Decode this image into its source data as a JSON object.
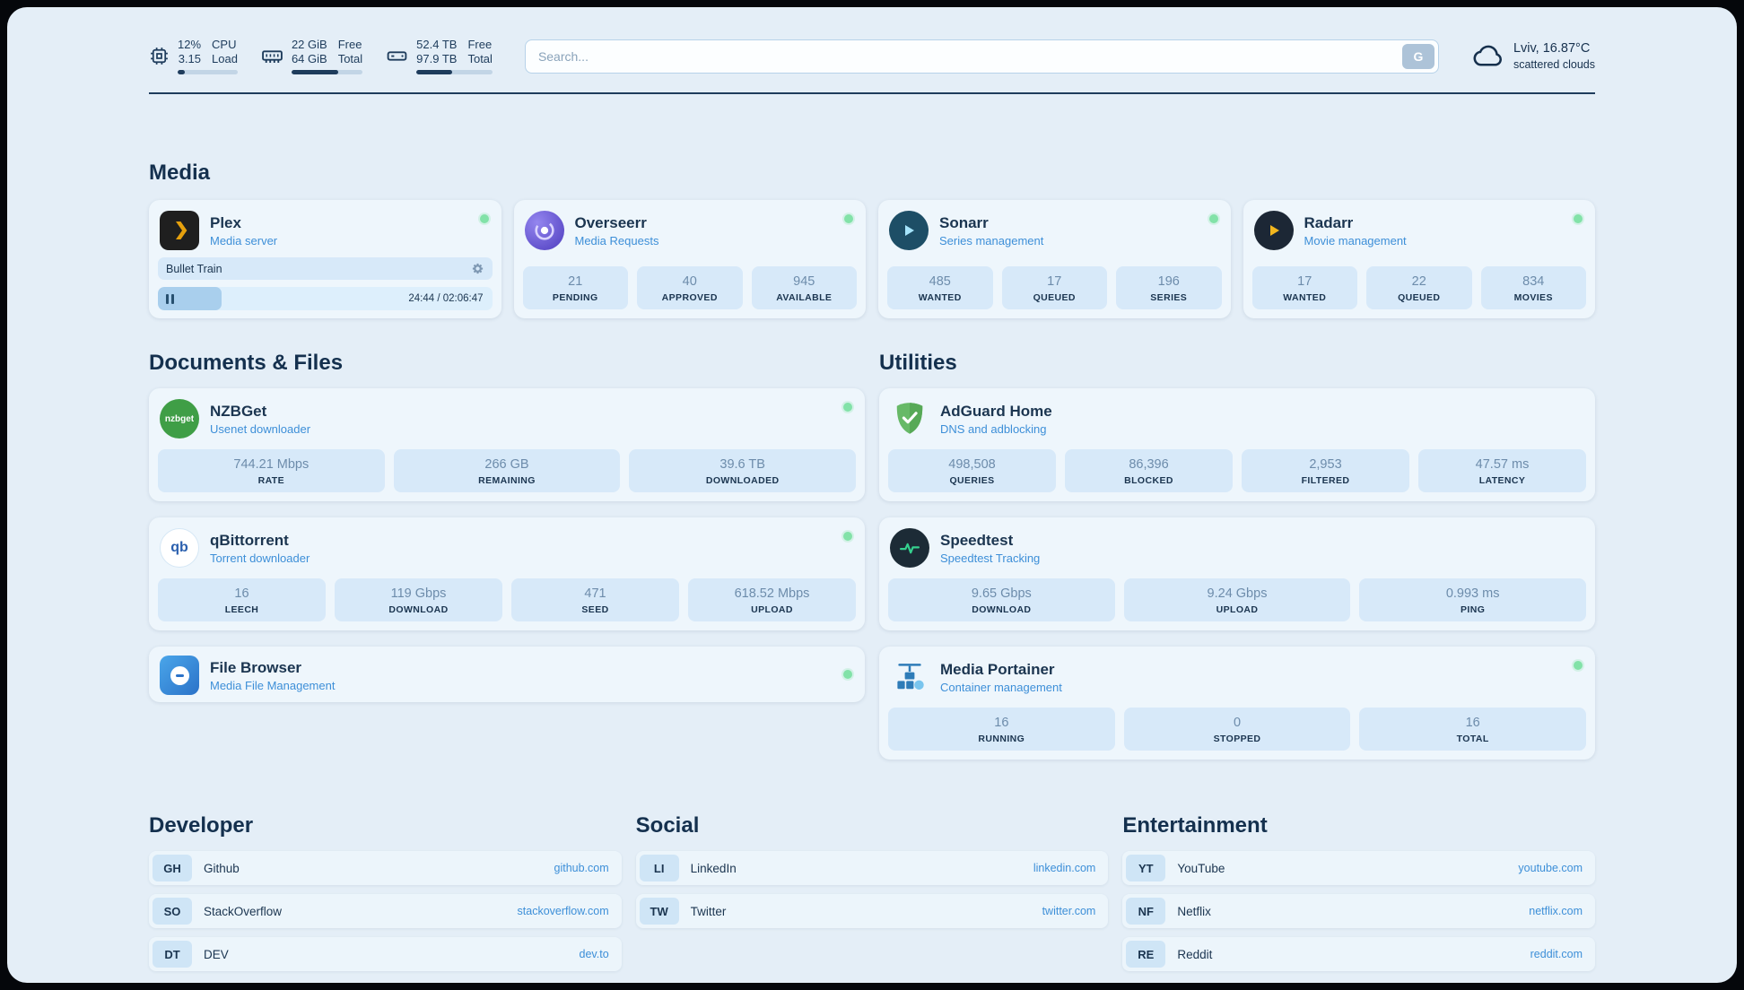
{
  "topbar": {
    "cpu": {
      "percent": "12%",
      "percent_label": "CPU",
      "load": "3.15",
      "load_label": "Load",
      "bar_pct": 12
    },
    "ram": {
      "free": "22 GiB",
      "free_label": "Free",
      "total": "64 GiB",
      "total_label": "Total",
      "bar_pct": 66
    },
    "disk": {
      "free": "52.4 TB",
      "free_label": "Free",
      "total": "97.9 TB",
      "total_label": "Total",
      "bar_pct": 47
    },
    "search": {
      "placeholder": "Search...",
      "provider_button": "G"
    },
    "weather": {
      "location": "Lviv, 16.87°C",
      "condition": "scattered clouds"
    }
  },
  "sections": {
    "media": "Media",
    "documents": "Documents & Files",
    "utilities": "Utilities"
  },
  "services": {
    "plex": {
      "name": "Plex",
      "subtitle": "Media server",
      "status": "online",
      "now_playing": {
        "title": "Bullet Train",
        "time": "24:44 / 02:06:47",
        "progress_pct": 19
      }
    },
    "overseerr": {
      "name": "Overseerr",
      "subtitle": "Media Requests",
      "status": "online",
      "stats": [
        {
          "value": "21",
          "label": "PENDING"
        },
        {
          "value": "40",
          "label": "APPROVED"
        },
        {
          "value": "945",
          "label": "AVAILABLE"
        }
      ]
    },
    "sonarr": {
      "name": "Sonarr",
      "subtitle": "Series management",
      "status": "online",
      "stats": [
        {
          "value": "485",
          "label": "WANTED"
        },
        {
          "value": "17",
          "label": "QUEUED"
        },
        {
          "value": "196",
          "label": "SERIES"
        }
      ]
    },
    "radarr": {
      "name": "Radarr",
      "subtitle": "Movie management",
      "status": "online",
      "stats": [
        {
          "value": "17",
          "label": "WANTED"
        },
        {
          "value": "22",
          "label": "QUEUED"
        },
        {
          "value": "834",
          "label": "MOVIES"
        }
      ]
    },
    "nzbget": {
      "name": "NZBGet",
      "subtitle": "Usenet downloader",
      "status": "online",
      "icon_text": "nzbget",
      "stats": [
        {
          "value": "744.21 Mbps",
          "label": "RATE"
        },
        {
          "value": "266 GB",
          "label": "REMAINING"
        },
        {
          "value": "39.6 TB",
          "label": "DOWNLOADED"
        }
      ]
    },
    "qbittorrent": {
      "name": "qBittorrent",
      "subtitle": "Torrent downloader",
      "status": "online",
      "icon_text": "qb",
      "stats": [
        {
          "value": "16",
          "label": "LEECH"
        },
        {
          "value": "119 Gbps",
          "label": "DOWNLOAD"
        },
        {
          "value": "471",
          "label": "SEED"
        },
        {
          "value": "618.52 Mbps",
          "label": "UPLOAD"
        }
      ]
    },
    "filebrowser": {
      "name": "File Browser",
      "subtitle": "Media File Management",
      "status": "online"
    },
    "adguard": {
      "name": "AdGuard Home",
      "subtitle": "DNS and adblocking",
      "stats": [
        {
          "value": "498,508",
          "label": "QUERIES"
        },
        {
          "value": "86,396",
          "label": "BLOCKED"
        },
        {
          "value": "2,953",
          "label": "FILTERED"
        },
        {
          "value": "47.57 ms",
          "label": "LATENCY"
        }
      ]
    },
    "speedtest": {
      "name": "Speedtest",
      "subtitle": "Speedtest Tracking",
      "stats": [
        {
          "value": "9.65 Gbps",
          "label": "DOWNLOAD"
        },
        {
          "value": "9.24 Gbps",
          "label": "UPLOAD"
        },
        {
          "value": "0.993 ms",
          "label": "PING"
        }
      ]
    },
    "portainer": {
      "name": "Media Portainer",
      "subtitle": "Container management",
      "status": "online",
      "stats": [
        {
          "value": "16",
          "label": "RUNNING"
        },
        {
          "value": "0",
          "label": "STOPPED"
        },
        {
          "value": "16",
          "label": "TOTAL"
        }
      ]
    }
  },
  "bookmarks": {
    "developer": {
      "title": "Developer",
      "items": [
        {
          "abbr": "GH",
          "name": "Github",
          "link": "github.com"
        },
        {
          "abbr": "SO",
          "name": "StackOverflow",
          "link": "stackoverflow.com"
        },
        {
          "abbr": "DT",
          "name": "DEV",
          "link": "dev.to"
        }
      ]
    },
    "social": {
      "title": "Social",
      "items": [
        {
          "abbr": "LI",
          "name": "LinkedIn",
          "link": "linkedin.com"
        },
        {
          "abbr": "TW",
          "name": "Twitter",
          "link": "twitter.com"
        }
      ]
    },
    "entertainment": {
      "title": "Entertainment",
      "items": [
        {
          "abbr": "YT",
          "name": "YouTube",
          "link": "youtube.com"
        },
        {
          "abbr": "NF",
          "name": "Netflix",
          "link": "netflix.com"
        },
        {
          "abbr": "RE",
          "name": "Reddit",
          "link": "reddit.com"
        }
      ]
    }
  }
}
